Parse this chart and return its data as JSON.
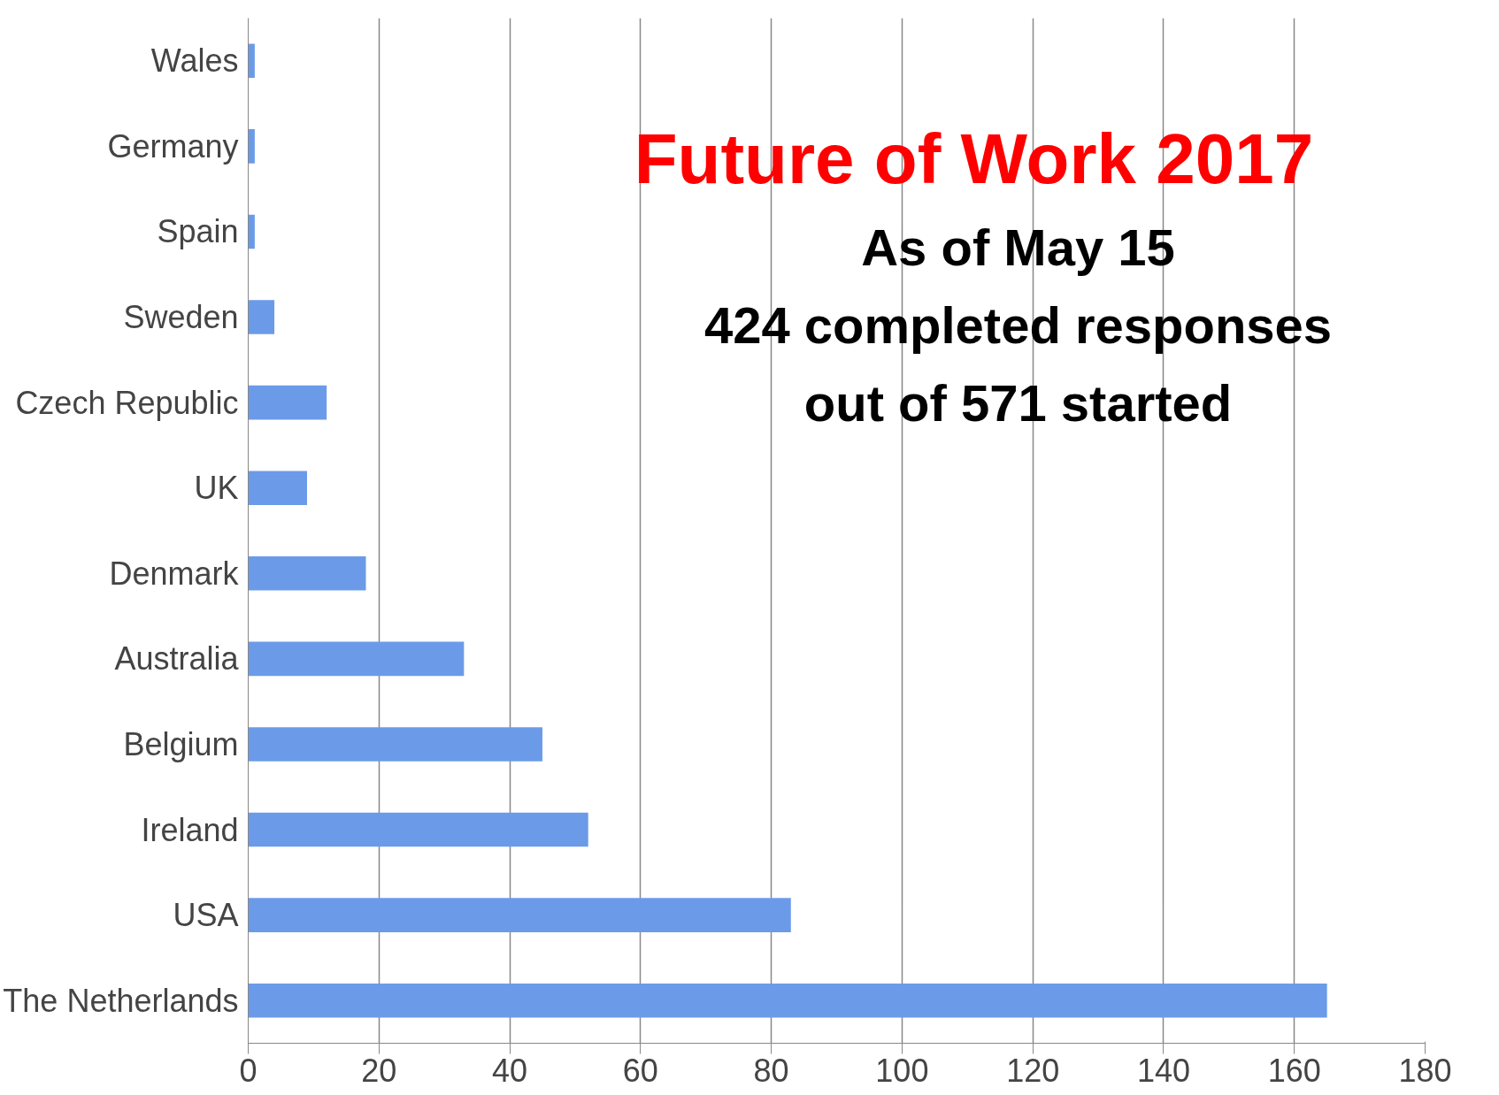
{
  "chart_data": {
    "type": "bar",
    "orientation": "horizontal",
    "title": "Future of Work 2017",
    "subtitle": "As of May 15\n424 completed responses\nout of 571 started",
    "categories": [
      "Wales",
      "Germany",
      "Spain",
      "Sweden",
      "Czech Republic",
      "UK",
      "Denmark",
      "Australia",
      "Belgium",
      "Ireland",
      "USA",
      "The Netherlands"
    ],
    "values": [
      1,
      1,
      1,
      4,
      12,
      9,
      18,
      33,
      45,
      52,
      83,
      165
    ],
    "color": "#6b9be8",
    "xlim": [
      0,
      180
    ],
    "xticks": [
      0,
      20,
      40,
      60,
      80,
      100,
      120,
      140,
      160,
      180
    ],
    "grid": "x"
  }
}
